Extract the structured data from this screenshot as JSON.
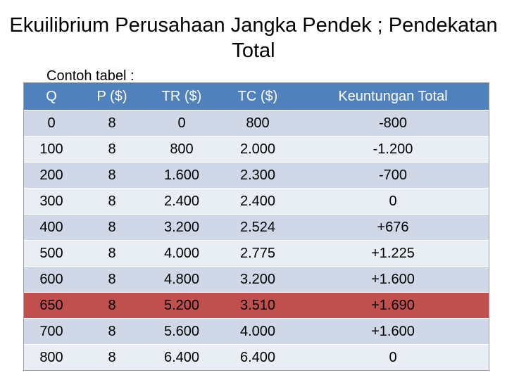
{
  "title": "Ekuilibrium Perusahaan Jangka Pendek ; Pendekatan Total",
  "subtitle": "Contoh tabel :",
  "table": {
    "headers": [
      "Q",
      "P ($)",
      "TR ($)",
      "TC ($)",
      "Keuntungan Total"
    ],
    "rows": [
      [
        "0",
        "8",
        "0",
        "800",
        "-800"
      ],
      [
        "100",
        "8",
        "800",
        "2.000",
        "-1.200"
      ],
      [
        "200",
        "8",
        "1.600",
        "2.300",
        "-700"
      ],
      [
        "300",
        "8",
        "2.400",
        "2.400",
        "0"
      ],
      [
        "400",
        "8",
        "3.200",
        "2.524",
        "+676"
      ],
      [
        "500",
        "8",
        "4.000",
        "2.775",
        "+1.225"
      ],
      [
        "600",
        "8",
        "4.800",
        "3.200",
        "+1.600"
      ],
      [
        "650",
        "8",
        "5.200",
        "3.510",
        "+1.690"
      ],
      [
        "700",
        "8",
        "5.600",
        "4.000",
        "+1.600"
      ],
      [
        "800",
        "8",
        "6.400",
        "6.400",
        "0"
      ]
    ],
    "highlight_row_index": 7
  },
  "colors": {
    "header_bg": "#4f81bd",
    "row_odd_bg": "#d0d8e8",
    "row_even_bg": "#e9edf4",
    "highlight_bg": "#c0504d"
  }
}
